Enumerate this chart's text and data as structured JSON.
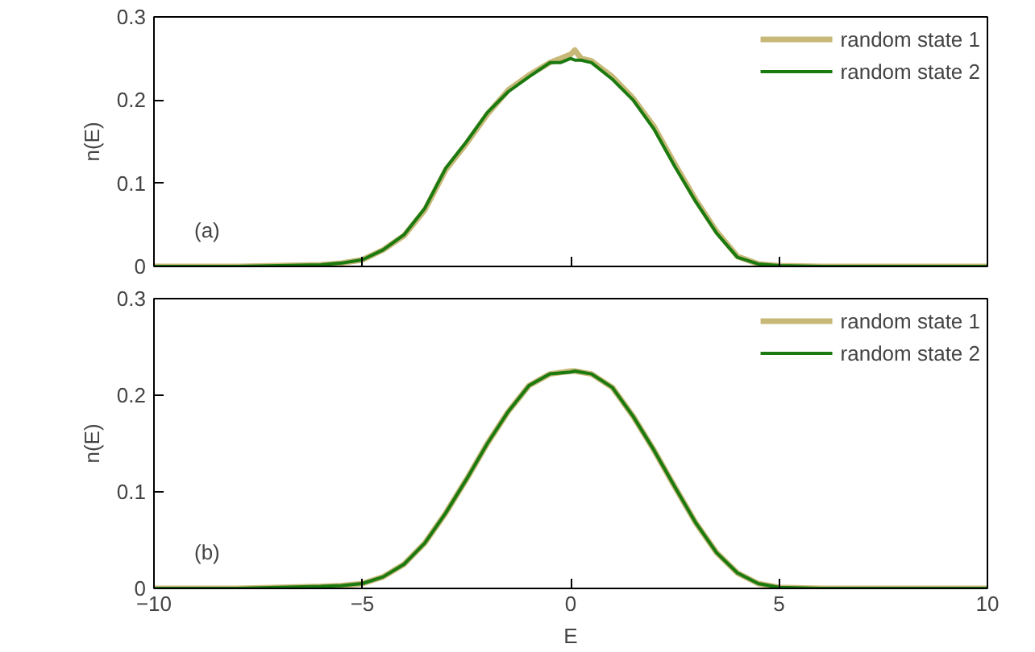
{
  "chart_data": [
    {
      "type": "line",
      "ylabel": "n(E)",
      "annotations": [
        "(a)"
      ],
      "xlim": [
        -10,
        10
      ],
      "xticks": [
        -10,
        -5,
        0,
        5,
        10
      ],
      "ylim": [
        0,
        0.3
      ],
      "yticks": [
        0,
        0.1,
        0.2,
        0.3
      ],
      "tick_labels": "y",
      "legend": "top right",
      "grid": false,
      "series": [
        {
          "name": "random state 1",
          "color": "#c8b878",
          "x": [
            -10,
            -8,
            -7,
            -6,
            -5.5,
            -5,
            -4.5,
            -4,
            -3.5,
            -3,
            -2.5,
            -2,
            -1.5,
            -1,
            -0.5,
            -0.25,
            0,
            0.1,
            0.25,
            0.5,
            1,
            1.5,
            2,
            2.5,
            3,
            3.5,
            4,
            4.5,
            5,
            6,
            7,
            8,
            10
          ],
          "values": [
            0,
            0,
            0.001,
            0.002,
            0.004,
            0.008,
            0.02,
            0.037,
            0.068,
            0.116,
            0.148,
            0.183,
            0.212,
            0.23,
            0.245,
            0.25,
            0.255,
            0.26,
            0.25,
            0.247,
            0.228,
            0.202,
            0.168,
            0.123,
            0.08,
            0.042,
            0.012,
            0.003,
            0.001,
            0,
            0,
            0,
            0
          ]
        },
        {
          "name": "random state 2",
          "color": "#1a7a10",
          "x": [
            -10,
            -8,
            -7,
            -6,
            -5.5,
            -5,
            -4.5,
            -4,
            -3.5,
            -3,
            -2.5,
            -2,
            -1.5,
            -1,
            -0.5,
            -0.25,
            0,
            0.1,
            0.25,
            0.5,
            1,
            1.5,
            2,
            2.5,
            3,
            3.5,
            4,
            4.5,
            5,
            6,
            7,
            8,
            10
          ],
          "values": [
            0,
            0,
            0.001,
            0.002,
            0.004,
            0.008,
            0.02,
            0.038,
            0.07,
            0.118,
            0.15,
            0.185,
            0.21,
            0.228,
            0.245,
            0.245,
            0.25,
            0.248,
            0.248,
            0.245,
            0.225,
            0.2,
            0.165,
            0.12,
            0.078,
            0.04,
            0.011,
            0.003,
            0.001,
            0,
            0,
            0,
            0
          ]
        }
      ]
    },
    {
      "type": "line",
      "xlabel": "E",
      "ylabel": "n(E)",
      "annotations": [
        "(b)"
      ],
      "xlim": [
        -10,
        10
      ],
      "xticks": [
        -10,
        -5,
        0,
        5,
        10
      ],
      "ylim": [
        0,
        0.3
      ],
      "yticks": [
        0,
        0.1,
        0.2,
        0.3
      ],
      "legend": "top right",
      "grid": false,
      "series": [
        {
          "name": "random state 1",
          "color": "#c8b878",
          "x": [
            -10,
            -8,
            -7,
            -6,
            -5.5,
            -5,
            -4.5,
            -4,
            -3.5,
            -3,
            -2.5,
            -2,
            -1.5,
            -1,
            -0.5,
            0,
            0.1,
            0.5,
            1,
            1.5,
            2,
            2.5,
            3,
            3.5,
            4,
            4.5,
            5,
            6,
            7,
            8,
            10
          ],
          "values": [
            0,
            0,
            0.001,
            0.002,
            0.003,
            0.005,
            0.012,
            0.025,
            0.047,
            0.078,
            0.113,
            0.15,
            0.183,
            0.21,
            0.222,
            0.225,
            0.225,
            0.222,
            0.208,
            0.178,
            0.143,
            0.105,
            0.068,
            0.037,
            0.016,
            0.005,
            0.001,
            0,
            0,
            0,
            0
          ]
        },
        {
          "name": "random state 2",
          "color": "#1a7a10",
          "x": [
            -10,
            -8,
            -7,
            -6,
            -5.5,
            -5,
            -4.5,
            -4,
            -3.5,
            -3,
            -2.5,
            -2,
            -1.5,
            -1,
            -0.5,
            0,
            0.1,
            0.5,
            1,
            1.5,
            2,
            2.5,
            3,
            3.5,
            4,
            4.5,
            5,
            6,
            7,
            8,
            10
          ],
          "values": [
            0,
            0,
            0.001,
            0.002,
            0.003,
            0.005,
            0.012,
            0.025,
            0.047,
            0.078,
            0.113,
            0.15,
            0.183,
            0.21,
            0.222,
            0.224,
            0.225,
            0.222,
            0.208,
            0.178,
            0.143,
            0.105,
            0.068,
            0.037,
            0.016,
            0.005,
            0.001,
            0,
            0,
            0,
            0
          ]
        }
      ]
    }
  ]
}
